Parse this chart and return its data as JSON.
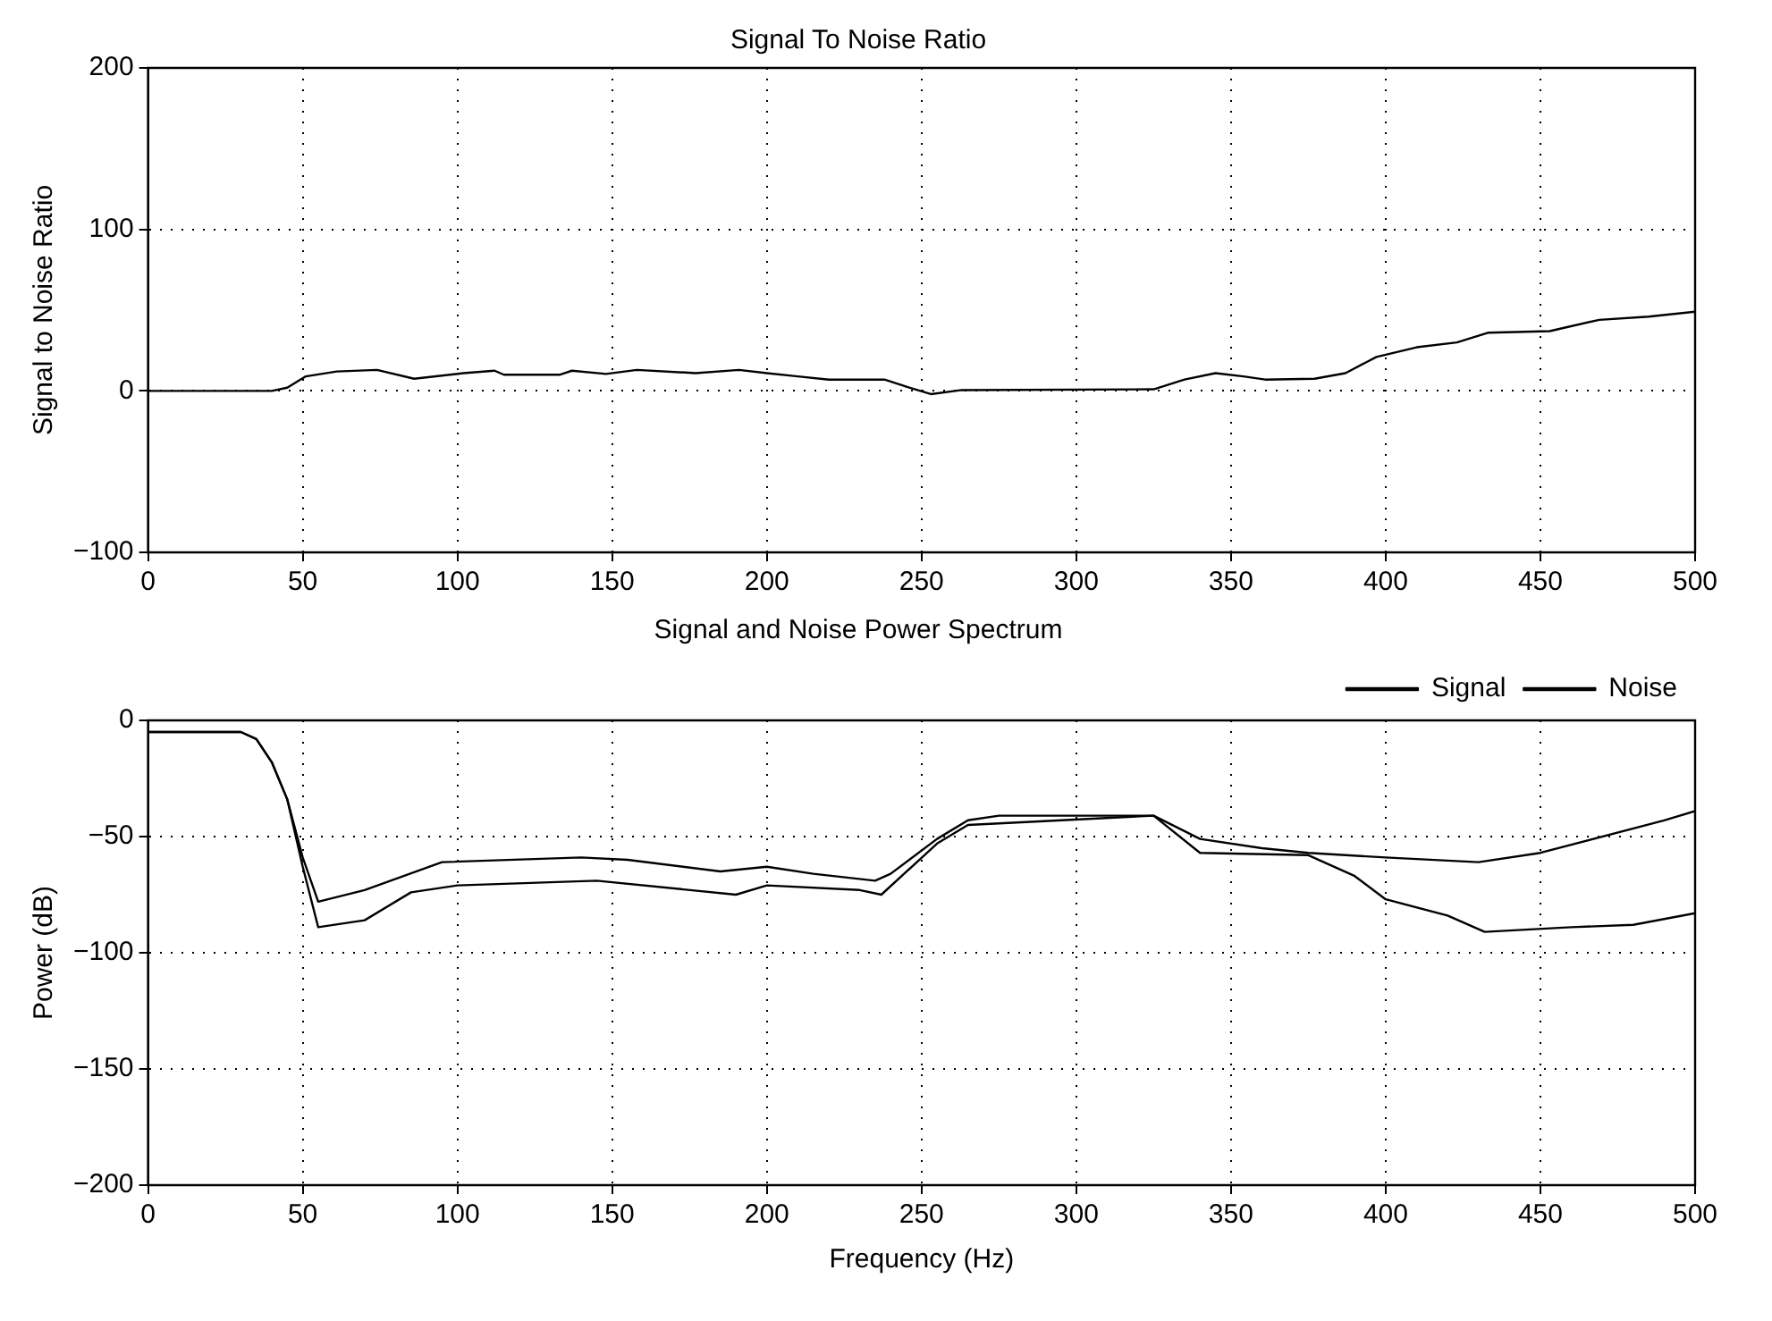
{
  "chart_data": [
    {
      "type": "line",
      "title": "Signal To Noise Ratio",
      "ylabel": "Signal to Noise Ratio",
      "xlim": [
        0,
        500
      ],
      "xticks": [
        0,
        50,
        100,
        150,
        200,
        250,
        300,
        350,
        400,
        450,
        500
      ],
      "ylim": [
        -100,
        200
      ],
      "yticks": [
        -100,
        0,
        100,
        200
      ],
      "grid": true,
      "legend": false,
      "marker": "none",
      "line_style": "solid",
      "series": [
        {
          "color": "#000000",
          "x": [
            0,
            40,
            45,
            51,
            61,
            74,
            86,
            102,
            112,
            115,
            133,
            137,
            148,
            158,
            177,
            191,
            200,
            210,
            220,
            238,
            246,
            253,
            263,
            325,
            335,
            345,
            354,
            361,
            377,
            387,
            397,
            410,
            423,
            433,
            453,
            469,
            485,
            500
          ],
          "values": [
            0,
            0,
            2,
            9,
            12,
            13,
            7.5,
            11,
            12.5,
            10,
            10,
            12.5,
            10.5,
            13,
            11,
            13,
            11,
            9,
            7,
            7,
            2,
            -2,
            0.5,
            1,
            7,
            11,
            9,
            7,
            7.5,
            11,
            21,
            27,
            30,
            36,
            37,
            44,
            46,
            49
          ]
        }
      ]
    },
    {
      "type": "line",
      "title": "Signal and Noise Power Spectrum",
      "xlabel": "Frequency (Hz)",
      "ylabel": "Power (dB)",
      "xlim": [
        0,
        500
      ],
      "xticks": [
        0,
        50,
        100,
        150,
        200,
        250,
        300,
        350,
        400,
        450,
        500
      ],
      "ylim": [
        -200,
        0
      ],
      "yticks": [
        -200,
        -150,
        -100,
        -50,
        0
      ],
      "grid": true,
      "legend": "top right",
      "marker": "none",
      "line_style": "solid",
      "series": [
        {
          "name": "Signal",
          "color": "#000000",
          "x": [
            0,
            30,
            35,
            40,
            45,
            50,
            55,
            70,
            95,
            140,
            155,
            185,
            200,
            215,
            235,
            240,
            255,
            265,
            275,
            325,
            340,
            360,
            375,
            400,
            430,
            450,
            490,
            500
          ],
          "values": [
            -5,
            -5,
            -8,
            -18,
            -34,
            -59,
            -78,
            -73,
            -61,
            -59,
            -60,
            -65,
            -63,
            -66,
            -69,
            -66,
            -51,
            -43,
            -41,
            -41,
            -51,
            -55,
            -57,
            -59,
            -61,
            -57,
            -43,
            -39
          ]
        },
        {
          "name": "Noise",
          "color": "#000000",
          "x": [
            0,
            30,
            35,
            40,
            45,
            50,
            55,
            70,
            85,
            100,
            145,
            190,
            200,
            230,
            237,
            255,
            265,
            325,
            340,
            375,
            390,
            400,
            420,
            432,
            460,
            480,
            500
          ],
          "values": [
            -5,
            -5,
            -8,
            -18,
            -34,
            -63,
            -89,
            -86,
            -74,
            -71,
            -69,
            -75,
            -71,
            -73,
            -75,
            -53,
            -45,
            -41,
            -57,
            -58,
            -67,
            -77,
            -84,
            -91,
            -89,
            -88,
            -83
          ]
        }
      ]
    }
  ]
}
